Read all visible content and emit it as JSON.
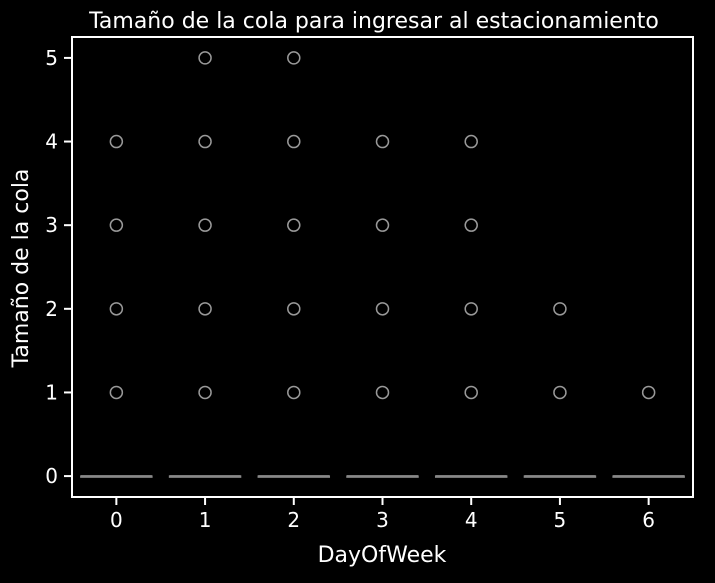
{
  "chart_data": {
    "type": "box",
    "title": "Tamaño de la cola para ingresar al estacionamiento",
    "xlabel": "DayOfWeek",
    "ylabel": "Tamaño de la cola",
    "categories": [
      "0",
      "1",
      "2",
      "3",
      "4",
      "5",
      "6"
    ],
    "y_ticks": [
      "0",
      "1",
      "2",
      "3",
      "4",
      "5"
    ],
    "ylim": [
      -0.25,
      5.25
    ],
    "grid": false,
    "boxes": [
      {
        "category": "0",
        "median": 0,
        "q1": 0,
        "q3": 0,
        "whisker_low": 0,
        "whisker_high": 0,
        "outliers": [
          1,
          2,
          3,
          4
        ]
      },
      {
        "category": "1",
        "median": 0,
        "q1": 0,
        "q3": 0,
        "whisker_low": 0,
        "whisker_high": 0,
        "outliers": [
          1,
          2,
          3,
          4,
          5
        ]
      },
      {
        "category": "2",
        "median": 0,
        "q1": 0,
        "q3": 0,
        "whisker_low": 0,
        "whisker_high": 0,
        "outliers": [
          1,
          2,
          3,
          4,
          5
        ]
      },
      {
        "category": "3",
        "median": 0,
        "q1": 0,
        "q3": 0,
        "whisker_low": 0,
        "whisker_high": 0,
        "outliers": [
          1,
          2,
          3,
          4
        ]
      },
      {
        "category": "4",
        "median": 0,
        "q1": 0,
        "q3": 0,
        "whisker_low": 0,
        "whisker_high": 0,
        "outliers": [
          1,
          2,
          3,
          4
        ]
      },
      {
        "category": "5",
        "median": 0,
        "q1": 0,
        "q3": 0,
        "whisker_low": 0,
        "whisker_high": 0,
        "outliers": [
          1,
          2
        ]
      },
      {
        "category": "6",
        "median": 0,
        "q1": 0,
        "q3": 0,
        "whisker_low": 0,
        "whisker_high": 0,
        "outliers": [
          1
        ]
      }
    ],
    "colors": {
      "background": "#000000",
      "axes": "#ffffff",
      "box_line": "#888888",
      "outlier": "#999999",
      "text": "#ffffff"
    }
  }
}
